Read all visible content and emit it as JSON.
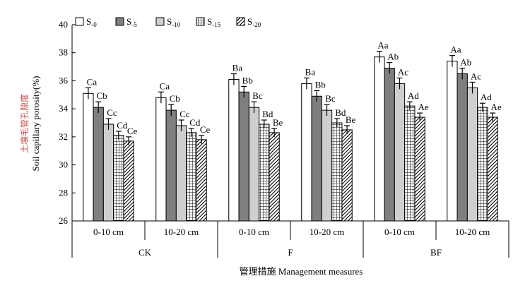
{
  "chart_data": {
    "type": "bar",
    "ylabel_cn": "土壤毛管孔隙度",
    "ylabel_en": "Soil capillary porosity(%)",
    "xlabel": "管理措施 Management measures",
    "ylim": [
      26,
      40
    ],
    "yticks": [
      "26",
      "28",
      "30",
      "32",
      "34",
      "36",
      "38",
      "40"
    ],
    "legend_position": "top-left",
    "groups": [
      "CK",
      "F",
      "BF"
    ],
    "subgroups": [
      "0-10 cm",
      "10-20 cm"
    ],
    "series": [
      {
        "name": "S-0",
        "base": "S",
        "sub": "-0",
        "pattern": "white",
        "values": [
          35.1,
          34.8,
          36.1,
          35.8,
          37.7,
          37.4
        ],
        "errors": [
          0.4,
          0.4,
          0.4,
          0.4,
          0.4,
          0.4
        ],
        "labels": [
          "Ca",
          "Ca",
          "Ba",
          "Ba",
          "Aa",
          "Aa"
        ]
      },
      {
        "name": "S-5",
        "base": "S",
        "sub": "-5",
        "pattern": "darkgray",
        "values": [
          34.1,
          33.9,
          35.2,
          34.9,
          36.9,
          36.5
        ],
        "errors": [
          0.4,
          0.4,
          0.4,
          0.4,
          0.4,
          0.4
        ],
        "labels": [
          "Cb",
          "Cb",
          "Bb",
          "Bb",
          "Ab",
          "Ab"
        ]
      },
      {
        "name": "S-10",
        "base": "S",
        "sub": "-10",
        "pattern": "lightgray",
        "values": [
          32.9,
          32.8,
          34.1,
          33.9,
          35.8,
          35.5
        ],
        "errors": [
          0.4,
          0.4,
          0.4,
          0.4,
          0.4,
          0.4
        ],
        "labels": [
          "Cc",
          "Cc",
          "Bc",
          "Bc",
          "Ac",
          "Ac"
        ]
      },
      {
        "name": "S-15",
        "base": "S",
        "sub": "-15",
        "pattern": "grid",
        "values": [
          32.1,
          32.3,
          32.9,
          33.0,
          34.2,
          34.1
        ],
        "errors": [
          0.3,
          0.3,
          0.3,
          0.3,
          0.3,
          0.3
        ],
        "labels": [
          "Cd",
          "Cd",
          "Bd",
          "Bd",
          "Ad",
          "Ad"
        ]
      },
      {
        "name": "S-20",
        "base": "S",
        "sub": "-20",
        "pattern": "hatch",
        "values": [
          31.7,
          31.8,
          32.3,
          32.5,
          33.4,
          33.4
        ],
        "errors": [
          0.3,
          0.3,
          0.3,
          0.3,
          0.3,
          0.3
        ],
        "labels": [
          "Ce",
          "Ce",
          "Be",
          "Be",
          "Ae",
          "Ae"
        ]
      }
    ]
  }
}
